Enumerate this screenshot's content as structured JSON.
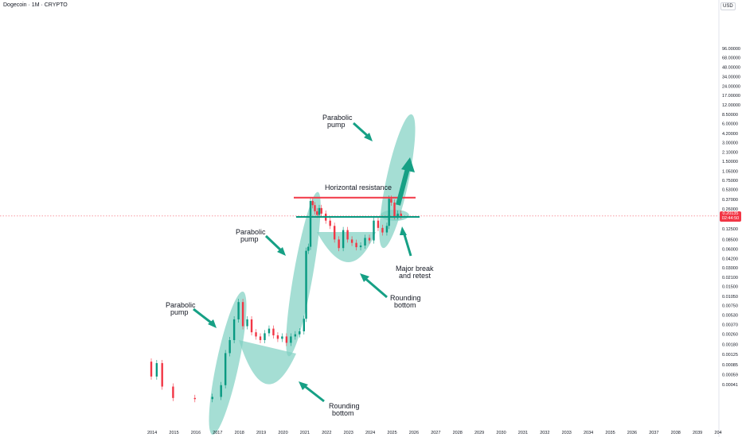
{
  "header": {
    "title": "Dogecoin · 1M · CRYPTO",
    "currency": "USD"
  },
  "colors": {
    "up": "#089981",
    "down": "#f23645",
    "shade": "#7fd0c2",
    "arrow": "#16a085",
    "resistance": "#f23645",
    "support": "#089981"
  },
  "price_label": {
    "value": "0.20135",
    "countdown": "02:44:50"
  },
  "chart_data": {
    "type": "candlestick",
    "title": "Dogecoin · 1M · CRYPTO",
    "y_scale": "log",
    "y_unit": "USD",
    "ylim": [
      0.0003,
      110
    ],
    "y_ticks": [
      "96.00000",
      "68.00000",
      "48.00000",
      "34.00000",
      "24.00000",
      "17.00000",
      "12.00000",
      "8.50000",
      "6.00000",
      "4.20000",
      "3.00000",
      "2.10000",
      "1.50000",
      "1.05000",
      "0.75000",
      "0.53000",
      "0.37000",
      "0.26000",
      "0.12500",
      "0.08500",
      "0.06000",
      "0.04200",
      "0.03000",
      "0.02100",
      "0.01500",
      "0.01050",
      "0.00750",
      "0.00530",
      "0.00370",
      "0.00260",
      "0.00180",
      "0.00125",
      "0.00085",
      "0.00059",
      "0.00041"
    ],
    "x_ticks": [
      "2014",
      "2015",
      "2016",
      "2017",
      "2018",
      "2019",
      "2020",
      "2021",
      "2022",
      "2023",
      "2024",
      "2025",
      "2026",
      "2027",
      "2028",
      "2029",
      "2030",
      "2031",
      "2032",
      "2033",
      "2034",
      "2035",
      "2036",
      "2037",
      "2038",
      "2039",
      "204"
    ],
    "current_price": 0.20135,
    "horizontal_resistance": 0.395,
    "support_level": 0.195,
    "series": [
      {
        "x": 2014.0,
        "o": 0.00095,
        "c": 0.00055
      },
      {
        "x": 2014.25,
        "o": 0.00055,
        "c": 0.0009
      },
      {
        "x": 2014.5,
        "o": 0.0009,
        "c": 0.00038
      },
      {
        "x": 2015.0,
        "o": 0.00038,
        "c": 0.00025
      },
      {
        "x": 2016.0,
        "o": 0.00025,
        "c": 0.00024
      },
      {
        "x": 2016.8,
        "o": 0.00024,
        "c": 0.00026
      },
      {
        "x": 2017.2,
        "o": 0.00026,
        "c": 0.0004
      },
      {
        "x": 2017.4,
        "o": 0.0004,
        "c": 0.0013
      },
      {
        "x": 2017.6,
        "o": 0.0013,
        "c": 0.0021
      },
      {
        "x": 2017.8,
        "o": 0.0021,
        "c": 0.0045
      },
      {
        "x": 2018.0,
        "o": 0.0045,
        "c": 0.0085
      },
      {
        "x": 2018.2,
        "o": 0.0085,
        "c": 0.0035
      },
      {
        "x": 2018.4,
        "o": 0.0035,
        "c": 0.0045
      },
      {
        "x": 2018.6,
        "o": 0.0045,
        "c": 0.0028
      },
      {
        "x": 2018.8,
        "o": 0.0028,
        "c": 0.0024
      },
      {
        "x": 2019.0,
        "o": 0.0024,
        "c": 0.0021
      },
      {
        "x": 2019.2,
        "o": 0.0021,
        "c": 0.0027
      },
      {
        "x": 2019.4,
        "o": 0.0027,
        "c": 0.0032
      },
      {
        "x": 2019.6,
        "o": 0.0032,
        "c": 0.0025
      },
      {
        "x": 2019.8,
        "o": 0.0025,
        "c": 0.0022
      },
      {
        "x": 2020.0,
        "o": 0.0022,
        "c": 0.0024
      },
      {
        "x": 2020.2,
        "o": 0.0024,
        "c": 0.0019
      },
      {
        "x": 2020.4,
        "o": 0.0019,
        "c": 0.0024
      },
      {
        "x": 2020.6,
        "o": 0.0024,
        "c": 0.0026
      },
      {
        "x": 2020.8,
        "o": 0.0026,
        "c": 0.0029
      },
      {
        "x": 2021.0,
        "o": 0.0029,
        "c": 0.0046
      },
      {
        "x": 2021.1,
        "o": 0.0046,
        "c": 0.056
      },
      {
        "x": 2021.2,
        "o": 0.056,
        "c": 0.065
      },
      {
        "x": 2021.3,
        "o": 0.065,
        "c": 0.35
      },
      {
        "x": 2021.4,
        "o": 0.35,
        "c": 0.3
      },
      {
        "x": 2021.5,
        "o": 0.3,
        "c": 0.24
      },
      {
        "x": 2021.6,
        "o": 0.24,
        "c": 0.21
      },
      {
        "x": 2021.7,
        "o": 0.21,
        "c": 0.27
      },
      {
        "x": 2021.8,
        "o": 0.27,
        "c": 0.22
      },
      {
        "x": 2022.0,
        "o": 0.22,
        "c": 0.17
      },
      {
        "x": 2022.2,
        "o": 0.17,
        "c": 0.14
      },
      {
        "x": 2022.4,
        "o": 0.14,
        "c": 0.085
      },
      {
        "x": 2022.6,
        "o": 0.085,
        "c": 0.062
      },
      {
        "x": 2022.8,
        "o": 0.062,
        "c": 0.12
      },
      {
        "x": 2023.0,
        "o": 0.12,
        "c": 0.085
      },
      {
        "x": 2023.2,
        "o": 0.085,
        "c": 0.075
      },
      {
        "x": 2023.4,
        "o": 0.075,
        "c": 0.064
      },
      {
        "x": 2023.6,
        "o": 0.064,
        "c": 0.068
      },
      {
        "x": 2023.8,
        "o": 0.068,
        "c": 0.09
      },
      {
        "x": 2024.0,
        "o": 0.09,
        "c": 0.082
      },
      {
        "x": 2024.2,
        "o": 0.082,
        "c": 0.17
      },
      {
        "x": 2024.4,
        "o": 0.17,
        "c": 0.13
      },
      {
        "x": 2024.6,
        "o": 0.13,
        "c": 0.11
      },
      {
        "x": 2024.8,
        "o": 0.11,
        "c": 0.14
      },
      {
        "x": 2024.9,
        "o": 0.14,
        "c": 0.38
      },
      {
        "x": 2025.0,
        "o": 0.38,
        "c": 0.33
      },
      {
        "x": 2025.15,
        "o": 0.33,
        "c": 0.2
      },
      {
        "x": 2025.3,
        "o": 0.2,
        "c": 0.22
      },
      {
        "x": 2025.45,
        "o": 0.22,
        "c": 0.20135
      }
    ]
  },
  "annotations": {
    "horizontal_resistance": "Horizontal resistance",
    "major_break_line1": "Major break",
    "major_break_line2": "and retest",
    "rounding_bottom_1_line1": "Rounding",
    "rounding_bottom_1_line2": "bottom",
    "rounding_bottom_2_line1": "Rounding",
    "rounding_bottom_2_line2": "bottom",
    "parabolic_1_line1": "Parabolic",
    "parabolic_1_line2": "pump",
    "parabolic_2_line1": "Parabolic",
    "parabolic_2_line2": "pump",
    "parabolic_3_line1": "Parabolic",
    "parabolic_3_line2": "pump"
  }
}
